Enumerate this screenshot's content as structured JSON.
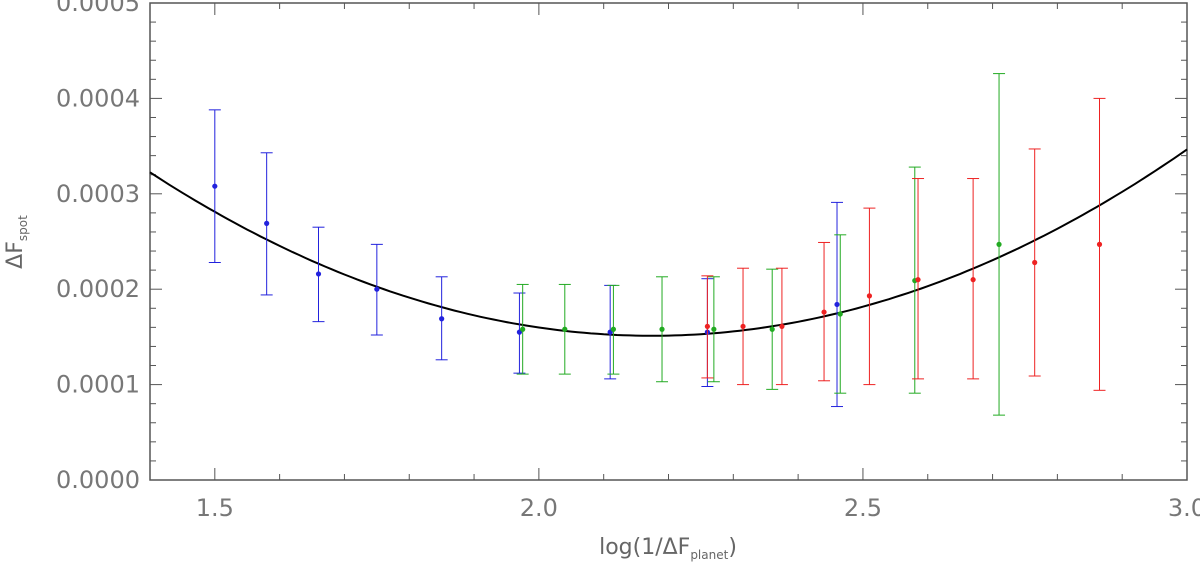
{
  "chart_data": {
    "type": "scatter",
    "title": "",
    "xlabel": {
      "prefix": "log(1/ΔF",
      "sub": "planet",
      "suffix": ")"
    },
    "ylabel": {
      "main": "ΔF",
      "sub": "spot"
    },
    "xlim": [
      1.4,
      3.0
    ],
    "ylim": [
      0.0,
      0.0005
    ],
    "xticks": [
      "1.5",
      "2.0",
      "2.5",
      "3.0"
    ],
    "yticks": [
      "0.0000",
      "0.0001",
      "0.0002",
      "0.0003",
      "0.0004",
      "0.0005"
    ],
    "grid": false,
    "series": [
      {
        "color": "#2222dd",
        "points": [
          {
            "x": 1.5,
            "y": 0.000308,
            "lo": 0.000228,
            "hi": 0.000388
          },
          {
            "x": 1.58,
            "y": 0.000269,
            "lo": 0.000194,
            "hi": 0.000343
          },
          {
            "x": 1.66,
            "y": 0.000216,
            "lo": 0.000166,
            "hi": 0.000265
          },
          {
            "x": 1.75,
            "y": 0.0002,
            "lo": 0.000152,
            "hi": 0.000247
          },
          {
            "x": 1.85,
            "y": 0.000169,
            "lo": 0.000126,
            "hi": 0.000213
          },
          {
            "x": 1.97,
            "y": 0.000155,
            "lo": 0.000112,
            "hi": 0.000196
          },
          {
            "x": 2.11,
            "y": 0.000155,
            "lo": 0.000106,
            "hi": 0.000204
          },
          {
            "x": 2.26,
            "y": 0.000155,
            "lo": 9.8e-05,
            "hi": 0.000211
          },
          {
            "x": 2.46,
            "y": 0.000184,
            "lo": 7.7e-05,
            "hi": 0.000291
          }
        ]
      },
      {
        "color": "#22aa22",
        "points": [
          {
            "x": 1.975,
            "y": 0.000158,
            "lo": 0.000111,
            "hi": 0.000205
          },
          {
            "x": 2.04,
            "y": 0.000158,
            "lo": 0.000111,
            "hi": 0.000205
          },
          {
            "x": 2.115,
            "y": 0.000158,
            "lo": 0.000111,
            "hi": 0.000204
          },
          {
            "x": 2.19,
            "y": 0.000158,
            "lo": 0.000103,
            "hi": 0.000213
          },
          {
            "x": 2.27,
            "y": 0.000158,
            "lo": 0.000103,
            "hi": 0.000213
          },
          {
            "x": 2.36,
            "y": 0.000158,
            "lo": 9.5e-05,
            "hi": 0.000221
          },
          {
            "x": 2.465,
            "y": 0.000174,
            "lo": 9.1e-05,
            "hi": 0.000257
          },
          {
            "x": 2.58,
            "y": 0.000209,
            "lo": 9.1e-05,
            "hi": 0.000328
          },
          {
            "x": 2.71,
            "y": 0.000247,
            "lo": 6.8e-05,
            "hi": 0.000426
          }
        ]
      },
      {
        "color": "#ee2222",
        "points": [
          {
            "x": 2.26,
            "y": 0.000161,
            "lo": 0.000107,
            "hi": 0.000214
          },
          {
            "x": 2.315,
            "y": 0.000161,
            "lo": 0.0001,
            "hi": 0.000222
          },
          {
            "x": 2.375,
            "y": 0.000161,
            "lo": 0.0001,
            "hi": 0.000222
          },
          {
            "x": 2.44,
            "y": 0.000176,
            "lo": 0.000104,
            "hi": 0.000249
          },
          {
            "x": 2.51,
            "y": 0.000193,
            "lo": 0.0001,
            "hi": 0.000285
          },
          {
            "x": 2.585,
            "y": 0.00021,
            "lo": 0.000106,
            "hi": 0.000316
          },
          {
            "x": 2.67,
            "y": 0.00021,
            "lo": 0.000106,
            "hi": 0.000316
          },
          {
            "x": 2.765,
            "y": 0.000228,
            "lo": 0.000109,
            "hi": 0.000347
          },
          {
            "x": 2.865,
            "y": 0.000247,
            "lo": 9.4e-05,
            "hi": 0.0004
          }
        ]
      }
    ],
    "fit": {
      "type": "quadratic",
      "color": "#000000",
      "x": [
        1.4,
        1.6,
        1.8,
        2.0,
        2.17,
        2.4,
        2.6,
        2.8,
        3.0
      ],
      "y": [
        0.000322,
        0.000246,
        0.000191,
        0.00016,
        0.000151,
        0.000167,
        0.000203,
        0.000261,
        0.000348
      ]
    }
  }
}
